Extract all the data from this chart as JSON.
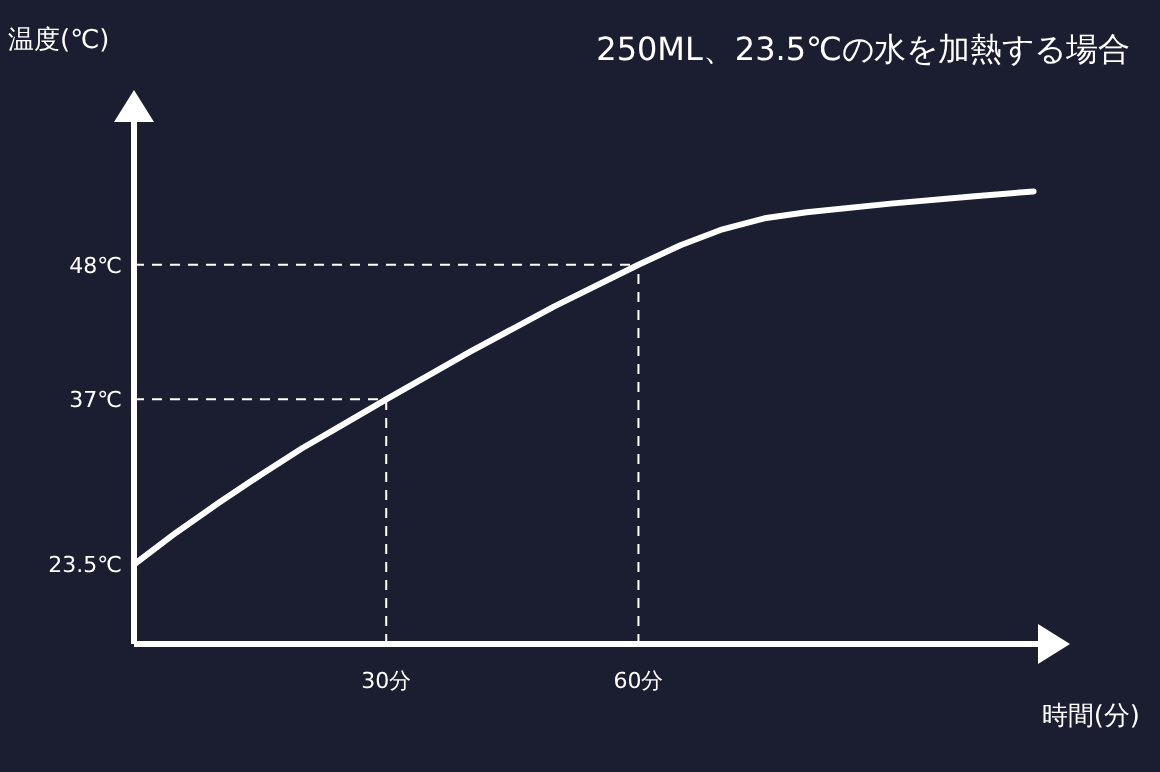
{
  "chart_data": {
    "type": "line",
    "title": "250ML、23.5℃の水を加熱する場合",
    "xlabel": "時間(分)",
    "ylabel": "温度(℃)",
    "xlim": [
      0,
      108
    ],
    "ylim": [
      17,
      60
    ],
    "xticks": [
      {
        "value": 30,
        "label": "30分"
      },
      {
        "value": 60,
        "label": "60分"
      }
    ],
    "yticks": [
      {
        "value": 23.5,
        "label": "23.5℃"
      },
      {
        "value": 37,
        "label": "37℃"
      },
      {
        "value": 48,
        "label": "48℃"
      }
    ],
    "series": [
      {
        "color": "#ffffff",
        "x": [
          0,
          5,
          10,
          15,
          20,
          25,
          30,
          40,
          50,
          60,
          65,
          70,
          75,
          80,
          90,
          100,
          107
        ],
        "values": [
          23.5,
          26.1,
          28.5,
          30.8,
          33.0,
          35.0,
          37.0,
          40.9,
          44.6,
          48.0,
          49.6,
          50.9,
          51.8,
          52.3,
          53.0,
          53.6,
          54.0
        ]
      }
    ],
    "ref_lines": [
      {
        "axis": "y",
        "value": 37,
        "color": "#ffffff",
        "line_style": "dashed"
      },
      {
        "axis": "y",
        "value": 48,
        "color": "#ffffff",
        "line_style": "dashed"
      },
      {
        "axis": "x",
        "value": 30,
        "color": "#ffffff",
        "line_style": "dashed"
      },
      {
        "axis": "x",
        "value": 60,
        "color": "#ffffff",
        "line_style": "dashed"
      }
    ],
    "grid": false,
    "marker": "none",
    "line_style": "solid"
  }
}
